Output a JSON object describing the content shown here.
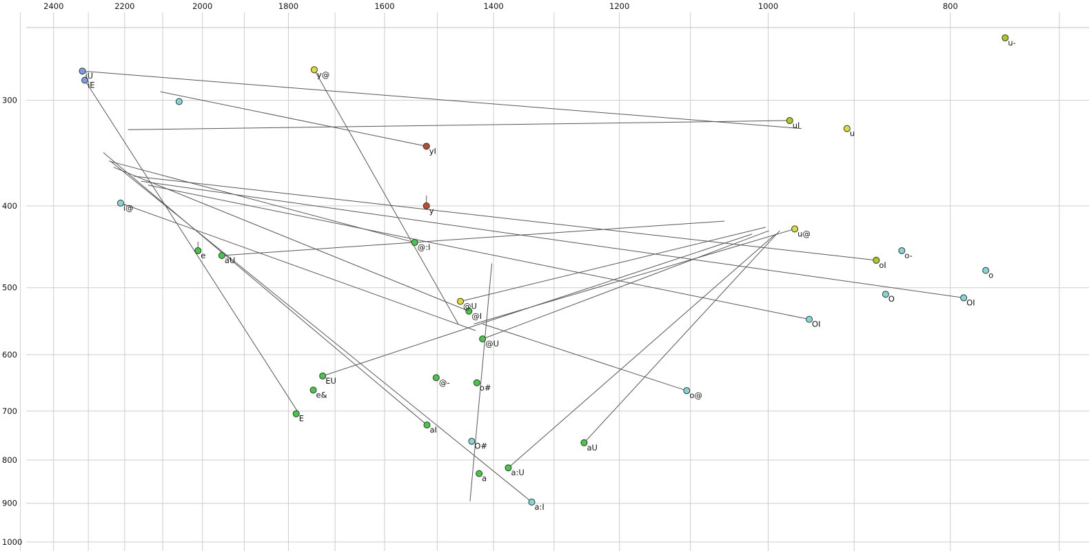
{
  "chart_data": {
    "type": "scatter",
    "title": "",
    "subtitle": "",
    "description": "Vowel formant plot (F2 horizontal reversed log scale in Hz, F1 vertical log scale in Hz) with diphthong trajectory lines",
    "grid": true,
    "legend": false,
    "x_axis": {
      "label": "",
      "ticks": [
        2400,
        2200,
        2000,
        1800,
        1600,
        1400,
        1200,
        1000,
        800
      ],
      "range": [
        2563,
        675
      ],
      "scale": "log-reversed",
      "minor_gridline_step_hz": 100
    },
    "y_axis": {
      "label": "",
      "ticks": [
        300,
        400,
        500,
        600,
        700,
        800,
        900,
        1000
      ],
      "range": [
        246,
        1025
      ],
      "scale": "log",
      "gridline_step_hz": 100
    },
    "colors": {
      "green": "#44c944",
      "yellowgreen": "#a8cc1e",
      "yellow": "#e0dd30",
      "cyan": "#84d6d6",
      "blue": "#7b9fe0",
      "red": "#c2492a",
      "dot_stroke": "#333333",
      "trajectory": "#555555",
      "gridline": "#cdcdcd",
      "border": "#c0c0c0",
      "text": "#111111"
    },
    "points": [
      {
        "label": "u-",
        "f2": 748,
        "f1": 253,
        "color": "yellowgreen"
      },
      {
        "label": "iU",
        "f2": 2317,
        "f1": 277,
        "color": "blue"
      },
      {
        "label": "iE",
        "f2": 2310,
        "f1": 284,
        "color": "blue"
      },
      {
        "label": "y@",
        "f2": 1744,
        "f1": 276,
        "color": "yellow"
      },
      {
        "label": "",
        "f2": 2058,
        "f1": 301,
        "color": "cyan"
      },
      {
        "label": "uI",
        "f2": 974,
        "f1": 317,
        "color": "yellowgreen"
      },
      {
        "label": "u",
        "f2": 908,
        "f1": 324,
        "color": "yellow"
      },
      {
        "label": "yI",
        "f2": 1520,
        "f1": 340,
        "color": "red"
      },
      {
        "label": "i@",
        "f2": 2211,
        "f1": 397,
        "color": "cyan"
      },
      {
        "label": "y",
        "f2": 1520,
        "f1": 400,
        "color": "red"
      },
      {
        "label": "u@",
        "f2": 968,
        "f1": 426,
        "color": "yellow"
      },
      {
        "label": "@:I",
        "f2": 1542,
        "f1": 442,
        "color": "green"
      },
      {
        "label": "e",
        "f2": 2011,
        "f1": 452,
        "color": "green"
      },
      {
        "label": "aU",
        "f2": 1953,
        "f1": 458,
        "color": "green"
      },
      {
        "label": "o-",
        "f2": 849,
        "f1": 452,
        "color": "cyan"
      },
      {
        "label": "oI",
        "f2": 876,
        "f1": 464,
        "color": "yellowgreen"
      },
      {
        "label": "o",
        "f2": 766,
        "f1": 477,
        "color": "cyan"
      },
      {
        "label": "O",
        "f2": 866,
        "f1": 509,
        "color": "cyan"
      },
      {
        "label": "OI",
        "f2": 787,
        "f1": 514,
        "color": "cyan"
      },
      {
        "label": "@U",
        "f2": 1458,
        "f1": 519,
        "color": "yellow"
      },
      {
        "label": "@I",
        "f2": 1443,
        "f1": 533,
        "color": "green"
      },
      {
        "label": "OI",
        "f2": 951,
        "f1": 545,
        "color": "cyan"
      },
      {
        "label": "@U",
        "f2": 1419,
        "f1": 575,
        "color": "green"
      },
      {
        "label": "EU",
        "f2": 1726,
        "f1": 636,
        "color": "green"
      },
      {
        "label": "@-",
        "f2": 1502,
        "f1": 639,
        "color": "green"
      },
      {
        "label": "o#",
        "f2": 1429,
        "f1": 648,
        "color": "green"
      },
      {
        "label": "e&",
        "f2": 1746,
        "f1": 661,
        "color": "green"
      },
      {
        "label": "o@",
        "f2": 1105,
        "f1": 662,
        "color": "cyan"
      },
      {
        "label": "E",
        "f2": 1783,
        "f1": 705,
        "color": "green"
      },
      {
        "label": "aI",
        "f2": 1519,
        "f1": 727,
        "color": "green"
      },
      {
        "label": "O#",
        "f2": 1438,
        "f1": 760,
        "color": "cyan"
      },
      {
        "label": "aU",
        "f2": 1253,
        "f1": 763,
        "color": "green"
      },
      {
        "label": "a:U",
        "f2": 1375,
        "f1": 817,
        "color": "green"
      },
      {
        "label": "a",
        "f2": 1425,
        "f1": 830,
        "color": "green"
      },
      {
        "label": "a:I",
        "f2": 1336,
        "f1": 897,
        "color": "cyan"
      }
    ],
    "segments": [
      {
        "name": "iU-trajectory",
        "from": [
          2317,
          277
        ],
        "to": [
          960,
          324
        ]
      },
      {
        "name": "uI-trajectory",
        "from": [
          974,
          317
        ],
        "to": [
          2191,
          325
        ]
      },
      {
        "name": "yI-trajectory",
        "from": [
          1520,
          340
        ],
        "to": [
          2106,
          293
        ]
      },
      {
        "name": "y@-trajectory",
        "from": [
          1744,
          276
        ],
        "to": [
          1462,
          552
        ]
      },
      {
        "name": "i@-trajectory",
        "from": [
          2211,
          397
        ],
        "to": [
          1431,
          562
        ]
      },
      {
        "name": "u@-trajectory",
        "from": [
          968,
          426
        ],
        "to": [
          1434,
          552
        ]
      },
      {
        "name": "@:I-trajectory",
        "from": [
          1542,
          442
        ],
        "to": [
          2243,
          354
        ]
      },
      {
        "name": "@I-trajectory",
        "from": [
          1443,
          533
        ],
        "to": [
          2230,
          360
        ]
      },
      {
        "name": "aI-trajectory",
        "from": [
          1519,
          727
        ],
        "to": [
          2258,
          346
        ]
      },
      {
        "name": "a:I-trajectory",
        "from": [
          1336,
          897
        ],
        "to": [
          2239,
          354
        ]
      },
      {
        "name": "oI-trajectory",
        "from": [
          876,
          464
        ],
        "to": [
          2175,
          369
        ]
      },
      {
        "name": "OI-trajectory",
        "from": [
          787,
          514
        ],
        "to": [
          2156,
          374
        ]
      },
      {
        "name": "OI2-trajectory",
        "from": [
          951,
          545
        ],
        "to": [
          2138,
          378
        ]
      },
      {
        "name": "@U-trajectory",
        "from": [
          1458,
          519
        ],
        "to": [
          1003,
          424
        ]
      },
      {
        "name": "@U2-trajectory",
        "from": [
          1419,
          575
        ],
        "to": [
          999,
          428
        ]
      },
      {
        "name": "EU-trajectory",
        "from": [
          1726,
          636
        ],
        "to": [
          1020,
          432
        ]
      },
      {
        "name": "aU-trajectory",
        "from": [
          1953,
          458
        ],
        "to": [
          1055,
          417
        ]
      },
      {
        "name": "aU2-trajectory",
        "from": [
          1253,
          763
        ],
        "to": [
          986,
          428
        ]
      },
      {
        "name": "a:U-trajectory",
        "from": [
          1375,
          817
        ],
        "to": [
          991,
          432
        ]
      },
      {
        "name": "o@-trajectory",
        "from": [
          1105,
          662
        ],
        "to": [
          1419,
          552
        ]
      },
      {
        "name": "iE-trajectory",
        "from": [
          2310,
          284
        ],
        "to": [
          1779,
          702
        ]
      },
      {
        "name": "trajectory",
        "from": [
          1403,
          468
        ],
        "to": [
          1441,
          895
        ]
      },
      {
        "name": "y-tick",
        "from": [
          1520,
          389
        ],
        "to": [
          1520,
          398
        ]
      },
      {
        "name": "e-tick",
        "from": [
          2011,
          441
        ],
        "to": [
          2011,
          450
        ]
      }
    ]
  }
}
